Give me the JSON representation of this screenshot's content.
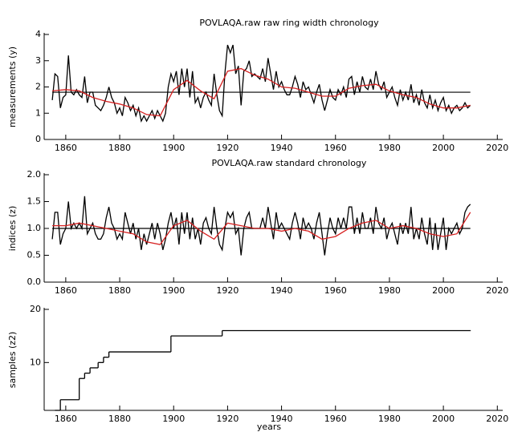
{
  "chart_data": [
    {
      "type": "line",
      "title": "POVLAQA.raw raw ring width chronology",
      "y_label": "measurements (y)",
      "xlim": [
        1852,
        2022
      ],
      "xticks": [
        1860,
        1880,
        1900,
        1920,
        1940,
        1960,
        1980,
        2000,
        2020
      ],
      "ylim": [
        0,
        4
      ],
      "yticks": [
        0,
        1,
        2,
        3,
        4
      ],
      "hline": 1.8,
      "series": [
        {
          "color": "#000000",
          "x": [
            1855,
            1856,
            1857,
            1858,
            1859,
            1860,
            1861,
            1862,
            1863,
            1864,
            1865,
            1866,
            1867,
            1868,
            1869,
            1870,
            1871,
            1872,
            1873,
            1874,
            1875,
            1876,
            1877,
            1878,
            1879,
            1880,
            1881,
            1882,
            1883,
            1884,
            1885,
            1886,
            1887,
            1888,
            1889,
            1890,
            1891,
            1892,
            1893,
            1894,
            1895,
            1896,
            1897,
            1898,
            1899,
            1900,
            1901,
            1902,
            1903,
            1904,
            1905,
            1906,
            1907,
            1908,
            1909,
            1910,
            1911,
            1912,
            1913,
            1914,
            1915,
            1916,
            1917,
            1918,
            1919,
            1920,
            1921,
            1922,
            1923,
            1924,
            1925,
            1926,
            1927,
            1928,
            1929,
            1930,
            1931,
            1932,
            1933,
            1934,
            1935,
            1936,
            1937,
            1938,
            1939,
            1940,
            1941,
            1942,
            1943,
            1944,
            1945,
            1946,
            1947,
            1948,
            1949,
            1950,
            1951,
            1952,
            1953,
            1954,
            1955,
            1956,
            1957,
            1958,
            1959,
            1960,
            1961,
            1962,
            1963,
            1964,
            1965,
            1966,
            1967,
            1968,
            1969,
            1970,
            1971,
            1972,
            1973,
            1974,
            1975,
            1976,
            1977,
            1978,
            1979,
            1980,
            1981,
            1982,
            1983,
            1984,
            1985,
            1986,
            1987,
            1988,
            1989,
            1990,
            1991,
            1992,
            1993,
            1994,
            1995,
            1996,
            1997,
            1998,
            1999,
            2000,
            2001,
            2002,
            2003,
            2004,
            2005,
            2006,
            2007,
            2008,
            2009,
            2010
          ],
          "values": [
            1.5,
            2.5,
            2.4,
            1.2,
            1.6,
            1.7,
            3.2,
            1.8,
            1.7,
            1.9,
            1.7,
            1.6,
            2.4,
            1.4,
            1.8,
            1.8,
            1.3,
            1.2,
            1.1,
            1.3,
            1.6,
            2.0,
            1.6,
            1.4,
            1.0,
            1.2,
            0.9,
            1.6,
            1.4,
            1.1,
            1.3,
            0.9,
            1.2,
            0.7,
            0.9,
            0.7,
            0.9,
            1.1,
            0.8,
            1.1,
            0.9,
            0.7,
            1.0,
            2.0,
            2.5,
            2.2,
            2.6,
            1.7,
            2.7,
            2.0,
            2.7,
            1.6,
            2.6,
            1.4,
            1.6,
            1.2,
            1.6,
            1.8,
            1.5,
            1.3,
            2.5,
            1.7,
            1.1,
            0.9,
            2.5,
            3.6,
            3.3,
            3.6,
            2.5,
            2.8,
            1.3,
            2.6,
            2.7,
            3.0,
            2.4,
            2.5,
            2.4,
            2.3,
            2.7,
            2.2,
            3.1,
            2.5,
            1.9,
            2.6,
            2.0,
            2.2,
            1.9,
            1.7,
            1.7,
            2.0,
            2.4,
            2.1,
            1.6,
            2.2,
            1.9,
            2.0,
            1.7,
            1.4,
            1.8,
            2.1,
            1.5,
            1.1,
            1.5,
            1.9,
            1.6,
            1.5,
            1.9,
            1.7,
            2.0,
            1.6,
            2.3,
            2.4,
            1.7,
            2.2,
            1.8,
            2.4,
            2.0,
            1.9,
            2.3,
            1.9,
            2.6,
            2.1,
            1.9,
            2.2,
            1.6,
            1.8,
            2.0,
            1.6,
            1.3,
            1.9,
            1.5,
            1.8,
            1.5,
            2.1,
            1.4,
            1.7,
            1.3,
            1.9,
            1.4,
            1.2,
            1.7,
            1.2,
            1.5,
            1.1,
            1.4,
            1.6,
            1.1,
            1.3,
            1.0,
            1.2,
            1.3,
            1.1,
            1.2,
            1.4,
            1.2,
            1.3
          ]
        },
        {
          "color": "#d62020",
          "x": [
            1855,
            1860,
            1865,
            1870,
            1875,
            1880,
            1885,
            1890,
            1895,
            1900,
            1905,
            1910,
            1915,
            1920,
            1925,
            1930,
            1935,
            1940,
            1945,
            1950,
            1955,
            1960,
            1965,
            1970,
            1975,
            1980,
            1985,
            1990,
            1995,
            2000,
            2005,
            2010
          ],
          "values": [
            1.85,
            1.9,
            1.85,
            1.6,
            1.45,
            1.35,
            1.2,
            0.95,
            0.9,
            1.9,
            2.25,
            1.85,
            1.55,
            2.6,
            2.7,
            2.45,
            2.3,
            2.0,
            1.95,
            1.8,
            1.65,
            1.65,
            1.95,
            2.05,
            2.1,
            1.85,
            1.7,
            1.6,
            1.35,
            1.2,
            1.2,
            1.3
          ]
        }
      ]
    },
    {
      "type": "line",
      "title": "POVLAQA.raw standard chronology",
      "y_label": "indices (z)",
      "xlim": [
        1852,
        2022
      ],
      "xticks": [
        1860,
        1880,
        1900,
        1920,
        1940,
        1960,
        1980,
        2000,
        2020
      ],
      "ylim": [
        0,
        2
      ],
      "yticks": [
        {
          "value": 0,
          "label": "0.0"
        },
        0.5,
        {
          "value": 1,
          "label": "1.0"
        },
        1.5,
        {
          "value": 2,
          "label": "2.0"
        }
      ],
      "hline": 1,
      "series": [
        {
          "color": "#000000",
          "x": [
            1855,
            1856,
            1857,
            1858,
            1859,
            1860,
            1861,
            1862,
            1863,
            1864,
            1865,
            1866,
            1867,
            1868,
            1869,
            1870,
            1871,
            1872,
            1873,
            1874,
            1875,
            1876,
            1877,
            1878,
            1879,
            1880,
            1881,
            1882,
            1883,
            1884,
            1885,
            1886,
            1887,
            1888,
            1889,
            1890,
            1891,
            1892,
            1893,
            1894,
            1895,
            1896,
            1897,
            1898,
            1899,
            1900,
            1901,
            1902,
            1903,
            1904,
            1905,
            1906,
            1907,
            1908,
            1909,
            1910,
            1911,
            1912,
            1913,
            1914,
            1915,
            1916,
            1917,
            1918,
            1919,
            1920,
            1921,
            1922,
            1923,
            1924,
            1925,
            1926,
            1927,
            1928,
            1929,
            1930,
            1931,
            1932,
            1933,
            1934,
            1935,
            1936,
            1937,
            1938,
            1939,
            1940,
            1941,
            1942,
            1943,
            1944,
            1945,
            1946,
            1947,
            1948,
            1949,
            1950,
            1951,
            1952,
            1953,
            1954,
            1955,
            1956,
            1957,
            1958,
            1959,
            1960,
            1961,
            1962,
            1963,
            1964,
            1965,
            1966,
            1967,
            1968,
            1969,
            1970,
            1971,
            1972,
            1973,
            1974,
            1975,
            1976,
            1977,
            1978,
            1979,
            1980,
            1981,
            1982,
            1983,
            1984,
            1985,
            1986,
            1987,
            1988,
            1989,
            1990,
            1991,
            1992,
            1993,
            1994,
            1995,
            1996,
            1997,
            1998,
            1999,
            2000,
            2001,
            2002,
            2003,
            2004,
            2005,
            2006,
            2007,
            2008,
            2009,
            2010
          ],
          "values": [
            0.8,
            1.3,
            1.3,
            0.7,
            0.9,
            1.0,
            1.5,
            1.0,
            1.1,
            1.0,
            1.1,
            1.0,
            1.6,
            0.9,
            1.0,
            1.1,
            0.9,
            0.8,
            0.8,
            0.9,
            1.2,
            1.4,
            1.1,
            1.0,
            0.8,
            0.9,
            0.8,
            1.3,
            1.1,
            0.9,
            1.1,
            0.8,
            1.0,
            0.6,
            0.9,
            0.7,
            0.9,
            1.1,
            0.8,
            1.1,
            0.9,
            0.6,
            0.8,
            1.1,
            1.3,
            1.0,
            1.2,
            0.7,
            1.3,
            0.9,
            1.3,
            0.8,
            1.2,
            0.8,
            1.0,
            0.7,
            1.1,
            1.2,
            1.0,
            0.9,
            1.4,
            1.0,
            0.7,
            0.6,
            1.0,
            1.3,
            1.2,
            1.3,
            0.9,
            1.0,
            0.5,
            1.0,
            1.2,
            1.3,
            1.0,
            1.0,
            1.0,
            1.0,
            1.2,
            1.0,
            1.4,
            1.1,
            0.8,
            1.3,
            1.0,
            1.1,
            1.0,
            0.9,
            0.8,
            1.1,
            1.3,
            1.1,
            0.8,
            1.2,
            1.0,
            1.1,
            1.0,
            0.8,
            1.1,
            1.3,
            0.9,
            0.5,
            0.9,
            1.2,
            1.0,
            0.9,
            1.2,
            1.0,
            1.2,
            1.0,
            1.4,
            1.4,
            0.9,
            1.2,
            0.9,
            1.3,
            1.0,
            1.0,
            1.2,
            0.9,
            1.4,
            1.1,
            1.0,
            1.2,
            0.8,
            1.0,
            1.1,
            0.9,
            0.7,
            1.1,
            0.9,
            1.1,
            0.9,
            1.4,
            0.8,
            1.0,
            0.8,
            1.2,
            0.9,
            0.7,
            1.2,
            0.6,
            1.1,
            0.6,
            0.9,
            1.2,
            0.6,
            1.0,
            0.9,
            1.0,
            1.1,
            0.9,
            1.0,
            1.3,
            1.4,
            1.45
          ]
        },
        {
          "color": "#d62020",
          "x": [
            1855,
            1860,
            1865,
            1870,
            1875,
            1880,
            1885,
            1890,
            1895,
            1900,
            1905,
            1910,
            1915,
            1920,
            1925,
            1930,
            1935,
            1940,
            1945,
            1950,
            1955,
            1960,
            1965,
            1970,
            1975,
            1980,
            1985,
            1990,
            1995,
            2000,
            2005,
            2010
          ],
          "values": [
            1.05,
            1.05,
            1.1,
            1.05,
            1.0,
            0.95,
            0.9,
            0.75,
            0.7,
            1.05,
            1.15,
            0.95,
            0.8,
            1.1,
            1.05,
            1.0,
            1.0,
            0.95,
            1.0,
            0.95,
            0.8,
            0.85,
            1.0,
            1.1,
            1.15,
            1.0,
            1.05,
            1.0,
            0.9,
            0.85,
            0.9,
            1.3
          ]
        }
      ]
    },
    {
      "type": "step",
      "y_label": "samples (z2)",
      "x_label": "years",
      "xlim": [
        1852,
        2022
      ],
      "xticks": [
        1860,
        1880,
        1900,
        1920,
        1940,
        1960,
        1980,
        2000,
        2020
      ],
      "ylim": [
        1,
        20
      ],
      "yticks": [
        10,
        20
      ],
      "series": [
        {
          "color": "#000000",
          "x": [
            1856,
            1858,
            1865,
            1867,
            1869,
            1872,
            1874,
            1876,
            1899,
            1918,
            2010
          ],
          "values": [
            1,
            3,
            7,
            8,
            9,
            10,
            11,
            12,
            15,
            16,
            16
          ]
        }
      ]
    }
  ]
}
